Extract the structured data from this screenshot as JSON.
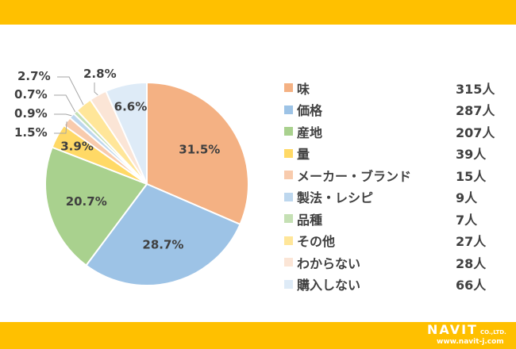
{
  "chart_data": {
    "type": "pie",
    "categories": [
      "味",
      "価格",
      "産地",
      "量",
      "メーカー・ブランド",
      "製法・レシピ",
      "品種",
      "その他",
      "わからない",
      "購入しない"
    ],
    "values": [
      315,
      287,
      207,
      39,
      15,
      9,
      7,
      27,
      28,
      66
    ],
    "units": [
      "315人",
      "287人",
      "207人",
      "39人",
      "15人",
      "9人",
      "7人",
      "27人",
      "28人",
      "66人"
    ],
    "percent_labels": [
      "31.5%",
      "28.7%",
      "20.7%",
      "3.9%",
      "1.5%",
      "0.9%",
      "0.7%",
      "2.7%",
      "2.8%",
      "6.6%"
    ],
    "colors": [
      "#F4B183",
      "#9DC3E6",
      "#A9D18E",
      "#FFD966",
      "#F8CBAD",
      "#BDD7EE",
      "#C5E0B4",
      "#FFE699",
      "#FBE5D6",
      "#DEEBF7"
    ],
    "legend_position": "right"
  },
  "logo": {
    "brand": "NAVIT",
    "suffix": "CO.,LTD.",
    "url": "www.navit-j.com"
  }
}
